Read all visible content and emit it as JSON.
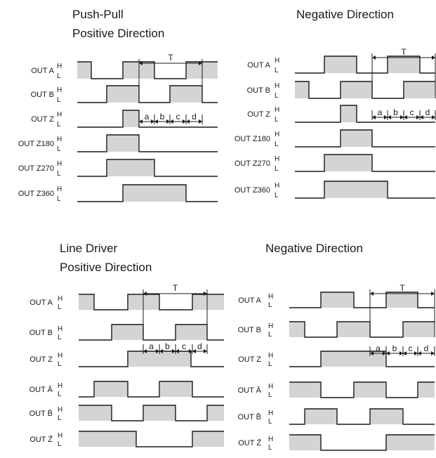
{
  "colors": {
    "pulse_fill": "#d4d4d4",
    "line": "#1a1a1a",
    "background": "#ffffff"
  },
  "level_labels": {
    "high": "H",
    "low": "L"
  },
  "dimension_labels": {
    "period": "T",
    "a": "a",
    "b": "b",
    "c": "c",
    "d": "d"
  },
  "panels": [
    {
      "titles": [
        "Push-Pull",
        "Positive Direction"
      ],
      "signals": [
        {
          "label": "OUT A",
          "start": "H",
          "pulses": [
            [
              0,
              20
            ],
            [
              65,
              110
            ],
            [
              155,
              200
            ]
          ]
        },
        {
          "label": "OUT B",
          "start": "L",
          "pulses": [
            [
              42,
              88
            ],
            [
              132,
              178
            ]
          ]
        },
        {
          "label": "OUT Z",
          "start": "L",
          "pulses": [
            [
              65,
              88
            ]
          ]
        },
        {
          "label": "OUT Z180",
          "start": "L",
          "pulses": [
            [
              42,
              88
            ]
          ]
        },
        {
          "label": "OUT Z270",
          "start": "L",
          "pulses": [
            [
              42,
              110
            ]
          ]
        },
        {
          "label": "OUT Z360",
          "start": "L",
          "pulses": [
            [
              65,
              155
            ]
          ]
        }
      ]
    },
    {
      "titles": [
        "Negative Direction"
      ],
      "signals": [
        {
          "label": "OUT A",
          "start": "L",
          "pulses": [
            [
              42,
              88
            ],
            [
              132,
              178
            ]
          ]
        },
        {
          "label": "OUT B",
          "start": "H",
          "pulses": [
            [
              0,
              20
            ],
            [
              65,
              110
            ],
            [
              155,
              200
            ]
          ]
        },
        {
          "label": "OUT Z",
          "start": "L",
          "pulses": [
            [
              65,
              88
            ]
          ]
        },
        {
          "label": "OUT Z180",
          "start": "L",
          "pulses": [
            [
              65,
              110
            ]
          ]
        },
        {
          "label": "OUT Z270",
          "start": "L",
          "pulses": [
            [
              42,
              110
            ]
          ]
        },
        {
          "label": "OUT Z360",
          "start": "L",
          "pulses": [
            [
              42,
              132
            ]
          ]
        }
      ]
    },
    {
      "titles": [
        "Line Driver",
        "Positive Direction"
      ],
      "signals": [
        {
          "label": "OUT A",
          "start": "H",
          "pulses": [
            [
              0,
              22
            ],
            [
              70,
              115
            ],
            [
              162,
              207
            ]
          ]
        },
        {
          "label": "OUT B",
          "start": "L",
          "pulses": [
            [
              47,
              92
            ],
            [
              138,
              183
            ]
          ]
        },
        {
          "label": "OUT Z",
          "start": "L",
          "pulses": [
            [
              70,
              160
            ]
          ]
        },
        {
          "label": "OUT Ā",
          "start": "L",
          "pulses": [
            [
              22,
              70
            ],
            [
              115,
              162
            ]
          ]
        },
        {
          "label": "OUT B̄",
          "start": "H",
          "pulses": [
            [
              0,
              47
            ],
            [
              92,
              138
            ],
            [
              183,
              207
            ]
          ]
        },
        {
          "label": "OUT Z̄",
          "start": "H",
          "pulses": [
            [
              0,
              82
            ],
            [
              162,
              207
            ]
          ]
        }
      ]
    },
    {
      "titles": [
        "Negative Direction"
      ],
      "signals": [
        {
          "label": "OUT A",
          "start": "L",
          "pulses": [
            [
              45,
              92
            ],
            [
              138,
              183
            ]
          ]
        },
        {
          "label": "OUT B",
          "start": "H",
          "pulses": [
            [
              0,
              22
            ],
            [
              68,
              115
            ],
            [
              162,
              207
            ]
          ]
        },
        {
          "label": "OUT Z",
          "start": "L",
          "pulses": [
            [
              45,
              138
            ]
          ]
        },
        {
          "label": "OUT Ā",
          "start": "H",
          "pulses": [
            [
              0,
              45
            ],
            [
              92,
              138
            ],
            [
              183,
              207
            ]
          ]
        },
        {
          "label": "OUT B̄",
          "start": "L",
          "pulses": [
            [
              22,
              68
            ],
            [
              115,
              162
            ]
          ]
        },
        {
          "label": "OUT Z̄",
          "start": "H",
          "pulses": [
            [
              0,
              45
            ],
            [
              138,
              207
            ]
          ]
        }
      ]
    }
  ]
}
